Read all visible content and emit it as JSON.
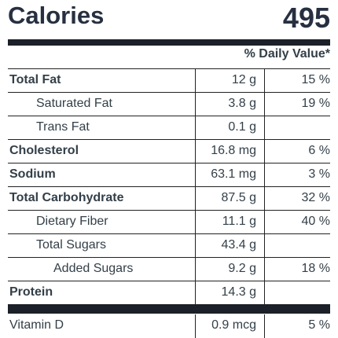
{
  "header": {
    "calories_label": "Calories",
    "calories_value": "495"
  },
  "daily_value_heading": "% Daily Value*",
  "nutrients": [
    {
      "name": "Total Fat",
      "amount": "12 g",
      "dv": "15 %",
      "bold": true,
      "indent": 0
    },
    {
      "name": "Saturated Fat",
      "amount": "3.8 g",
      "dv": "19 %",
      "bold": false,
      "indent": 1
    },
    {
      "name": "Trans Fat",
      "amount": "0.1 g",
      "dv": "",
      "bold": false,
      "indent": 1
    },
    {
      "name": "Cholesterol",
      "amount": "16.8 mg",
      "dv": "6 %",
      "bold": true,
      "indent": 0
    },
    {
      "name": "Sodium",
      "amount": "63.1 mg",
      "dv": "3 %",
      "bold": true,
      "indent": 0
    },
    {
      "name": "Total Carbohydrate",
      "amount": "87.5 g",
      "dv": "32 %",
      "bold": true,
      "indent": 0
    },
    {
      "name": "Dietary Fiber",
      "amount": "11.1 g",
      "dv": "40 %",
      "bold": false,
      "indent": 1
    },
    {
      "name": "Total Sugars",
      "amount": "43.4 g",
      "dv": "",
      "bold": false,
      "indent": 1
    },
    {
      "name": "Added Sugars",
      "amount": "9.2 g",
      "dv": "18 %",
      "bold": false,
      "indent": 2
    },
    {
      "name": "Protein",
      "amount": "14.3 g",
      "dv": "",
      "bold": true,
      "indent": 0
    }
  ],
  "vitamins": [
    {
      "name": "Vitamin D",
      "amount": "0.9 mcg",
      "dv": "5 %",
      "bold": false,
      "indent": 0
    }
  ]
}
